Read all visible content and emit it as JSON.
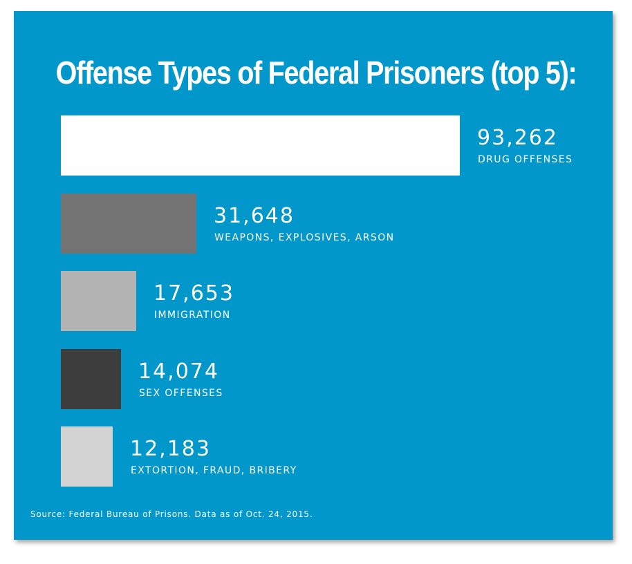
{
  "chart_data": {
    "type": "bar",
    "orientation": "horizontal",
    "title": "Offense Types of Federal Prisoners (top 5):",
    "categories": [
      "DRUG OFFENSES",
      "WEAPONS, EXPLOSIVES, ARSON",
      "IMMIGRATION",
      "SEX OFFENSES",
      "EXTORTION, FRAUD, BRIBERY"
    ],
    "values": [
      93262,
      31648,
      17653,
      14074,
      12183
    ],
    "value_labels": [
      "93,262",
      "31,648",
      "17,653",
      "14,074",
      "12,183"
    ],
    "bar_colors": [
      "#ffffff",
      "#737373",
      "#b3b3b3",
      "#3d3d3d",
      "#d3d3d3"
    ],
    "xlim": [
      0,
      93262
    ],
    "grid": false,
    "legend": "none"
  },
  "source": "Source: Federal Bureau of Prisons. Data as of Oct. 24, 2015.",
  "colors": {
    "background": "#0297cb",
    "text": "#ffffff"
  }
}
